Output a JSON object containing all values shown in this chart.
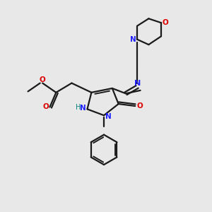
{
  "bg_color": "#e8e8e8",
  "bond_color": "#1a1a1a",
  "N_color": "#2020ff",
  "O_color": "#dd0000",
  "H_color": "#008080",
  "line_width": 1.6,
  "figsize": [
    3.0,
    3.0
  ],
  "dpi": 100,
  "xlim": [
    0,
    10
  ],
  "ylim": [
    0,
    10
  ]
}
